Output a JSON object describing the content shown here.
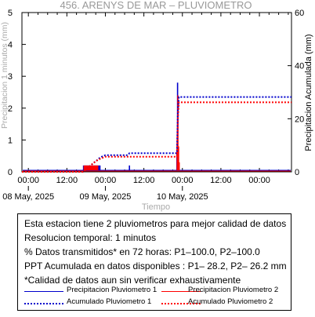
{
  "chart_data": {
    "type": "line",
    "title": "456. ARENYS DE MAR – PLUVIOMETRO",
    "xlabel": "Tiempo",
    "ylabel_left": "Precipitacion 1 minutos (mm)",
    "ylabel_right": "Precipitacion Acumulada (mm)",
    "ylim_left": [
      0,
      5
    ],
    "ylim_right": [
      0,
      60
    ],
    "yticks_left": [
      "0",
      "1",
      "2",
      "3",
      "4",
      "5"
    ],
    "yticks_right": [
      "0",
      "20",
      "40",
      "60"
    ],
    "xlim_hours": [
      -2,
      82
    ],
    "xticks": [
      {
        "h": 0,
        "label": "00:00"
      },
      {
        "h": 12,
        "label": "12:00"
      },
      {
        "h": 24,
        "label": "00:00"
      },
      {
        "h": 36,
        "label": "12:00"
      },
      {
        "h": 48,
        "label": "00:00"
      },
      {
        "h": 60,
        "label": "12:00"
      },
      {
        "h": 72,
        "label": "00:00"
      }
    ],
    "date_labels": [
      {
        "h": 0,
        "label": "08 May, 2025"
      },
      {
        "h": 24,
        "label": "09 May, 2025"
      },
      {
        "h": 48,
        "label": "10 May, 2025"
      }
    ],
    "series": [
      {
        "name": "Precipitacion Pluviometro 1",
        "axis": "left",
        "style": "bars",
        "color": "#0000cc",
        "bars": [
          [
            17.2,
            0.2
          ],
          [
            17.5,
            0.2
          ],
          [
            17.8,
            0.2
          ],
          [
            18.1,
            0.2
          ],
          [
            18.4,
            0.2
          ],
          [
            18.7,
            0.2
          ],
          [
            19.0,
            0.2
          ],
          [
            19.3,
            0.2
          ],
          [
            19.6,
            0.2
          ],
          [
            19.9,
            0.2
          ],
          [
            20.2,
            0.2
          ],
          [
            20.5,
            0.2
          ],
          [
            20.8,
            0.2
          ],
          [
            21.1,
            0.2
          ],
          [
            21.4,
            0.2
          ],
          [
            21.7,
            0.2
          ],
          [
            22.0,
            0.2
          ],
          [
            22.3,
            0.2
          ],
          [
            31.5,
            0.2
          ],
          [
            46.3,
            0.6
          ],
          [
            46.5,
            2.8
          ],
          [
            46.7,
            0.4
          ]
        ]
      },
      {
        "name": "Precipitacion Pluviometro 2",
        "axis": "left",
        "style": "bars",
        "color": "#ff0000",
        "bars": [
          [
            17.4,
            0.2
          ],
          [
            17.7,
            0.2
          ],
          [
            18.0,
            0.2
          ],
          [
            18.3,
            0.2
          ],
          [
            18.6,
            0.2
          ],
          [
            18.9,
            0.2
          ],
          [
            19.2,
            0.2
          ],
          [
            19.5,
            0.2
          ],
          [
            19.8,
            0.2
          ],
          [
            20.1,
            0.2
          ],
          [
            20.4,
            0.2
          ],
          [
            20.7,
            0.2
          ],
          [
            21.0,
            0.2
          ],
          [
            21.3,
            0.2
          ],
          [
            21.6,
            0.2
          ],
          [
            46.4,
            0.7
          ],
          [
            46.6,
            2.4
          ],
          [
            46.8,
            0.8
          ],
          [
            47.0,
            0.3
          ]
        ]
      },
      {
        "name": "Acumulado Pluviometro 1",
        "axis": "right",
        "style": "dotted",
        "color": "#0000cc",
        "points": [
          [
            -2,
            0
          ],
          [
            17,
            0
          ],
          [
            18,
            1
          ],
          [
            19.5,
            2.5
          ],
          [
            21,
            4
          ],
          [
            22.5,
            5.5
          ],
          [
            24,
            6.3
          ],
          [
            31,
            6.3
          ],
          [
            31.5,
            7
          ],
          [
            46.3,
            7
          ],
          [
            46.6,
            23
          ],
          [
            46.9,
            28.2
          ],
          [
            82,
            28.2
          ]
        ]
      },
      {
        "name": "Acumulado Pluviometro 2",
        "axis": "right",
        "style": "dotted",
        "color": "#ff0000",
        "points": [
          [
            -2,
            0
          ],
          [
            17,
            0
          ],
          [
            18,
            1
          ],
          [
            19.5,
            2.5
          ],
          [
            21,
            4
          ],
          [
            22.5,
            5
          ],
          [
            24,
            5.7
          ],
          [
            46.3,
            5.7
          ],
          [
            46.6,
            20
          ],
          [
            46.9,
            26.2
          ],
          [
            82,
            26.2
          ]
        ]
      }
    ]
  },
  "info": {
    "line1": "Esta estacion tiene 2 pluviometros para mejor calidad de datos",
    "line2": "Resolucion temporal: 1 minutos",
    "line3": "% Datos transmitidos* en 72 horas: P1–100.0, P2–100.0",
    "line4": "PPT Acumulada en datos disponibles : P1– 28.2, P2– 26.2 mm",
    "line5": "*Calidad de datos aun sin verificar exhaustivamente"
  },
  "legend": [
    {
      "label": "Precipitacion Pluviometro 1",
      "color": "#0000cc",
      "style": "solid"
    },
    {
      "label": "Precipitacion Pluviometro 2",
      "color": "#ff0000",
      "style": "solid"
    },
    {
      "label": "Acumulado Pluviometro 1",
      "color": "#0000cc",
      "style": "dotted"
    },
    {
      "label": "Acumulado Pluviometro 2",
      "color": "#ff0000",
      "style": "dotted"
    }
  ]
}
